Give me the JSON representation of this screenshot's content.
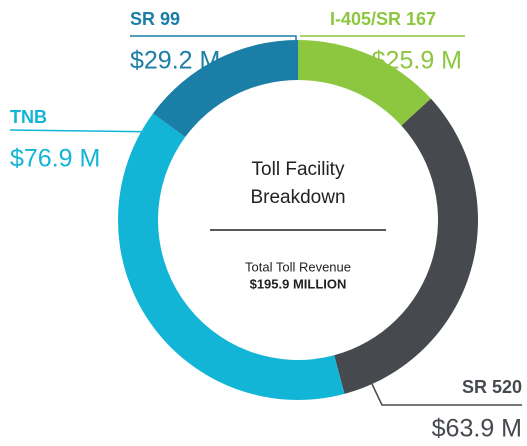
{
  "chart_data": {
    "type": "donut",
    "title": "Toll Facility Breakdown",
    "title_lines": [
      "Toll Facility",
      "Breakdown"
    ],
    "subtitle": "Total Toll Revenue",
    "total_label": "$195.9 MILLION",
    "categories": [
      "I-405/SR 167",
      "SR 520",
      "TNB",
      "SR 99"
    ],
    "values": [
      25.9,
      63.9,
      76.9,
      29.2
    ],
    "value_labels": [
      "$25.9 M",
      "$63.9 M",
      "$76.9 M",
      "$29.2 M"
    ],
    "colors": [
      "#8dc63f",
      "#464a4f",
      "#13b5d6",
      "#1a7ea6"
    ]
  }
}
